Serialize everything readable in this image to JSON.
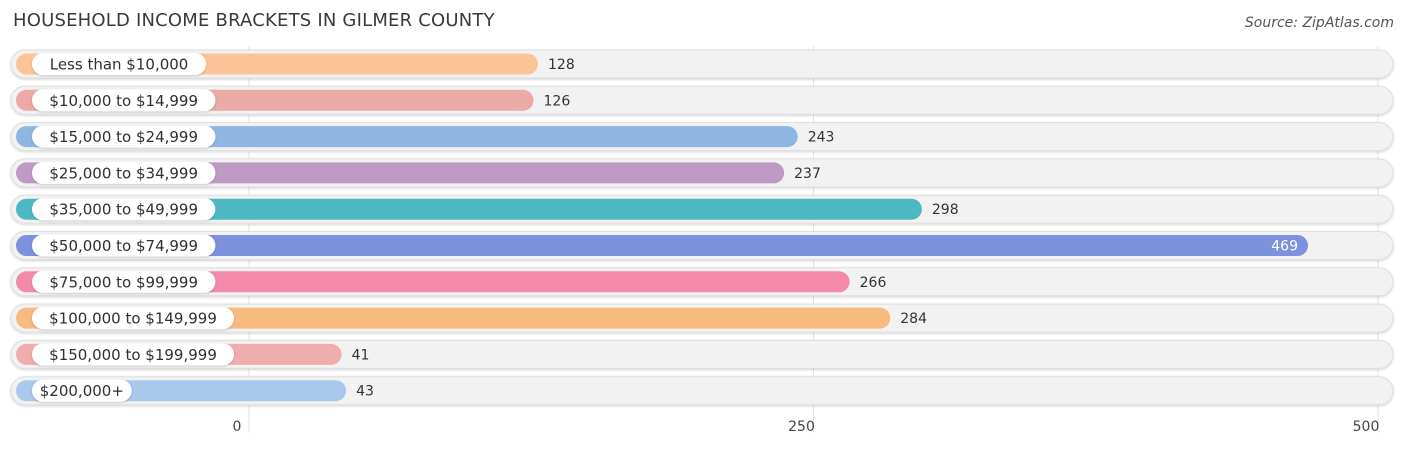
{
  "chart_data": {
    "type": "bar",
    "orientation": "horizontal",
    "title": "HOUSEHOLD INCOME BRACKETS IN GILMER COUNTY",
    "source": "Source: ZipAtlas.com",
    "categories": [
      "Less than $10,000",
      "$10,000 to $14,999",
      "$15,000 to $24,999",
      "$25,000 to $34,999",
      "$35,000 to $49,999",
      "$50,000 to $74,999",
      "$75,000 to $99,999",
      "$100,000 to $149,999",
      "$150,000 to $199,999",
      "$200,000+"
    ],
    "values": [
      128,
      126,
      243,
      237,
      298,
      469,
      266,
      284,
      41,
      43
    ],
    "value_labels": [
      "128",
      "126",
      "243",
      "237",
      "298",
      "469",
      "266",
      "284",
      "41",
      "43"
    ],
    "colors": [
      "#f9c596",
      "#eba9a7",
      "#8fb6e3",
      "#bf9ac4",
      "#4eb8c2",
      "#7e91dc",
      "#f48aab",
      "#f8bb7f",
      "#f0adad",
      "#a9c8ec"
    ],
    "xlim": [
      0,
      500
    ],
    "xticks": [
      {
        "value": 0,
        "label": "0"
      },
      {
        "value": 250,
        "label": "250"
      },
      {
        "value": 500,
        "label": "500"
      }
    ],
    "grid": true,
    "legend": "none"
  }
}
